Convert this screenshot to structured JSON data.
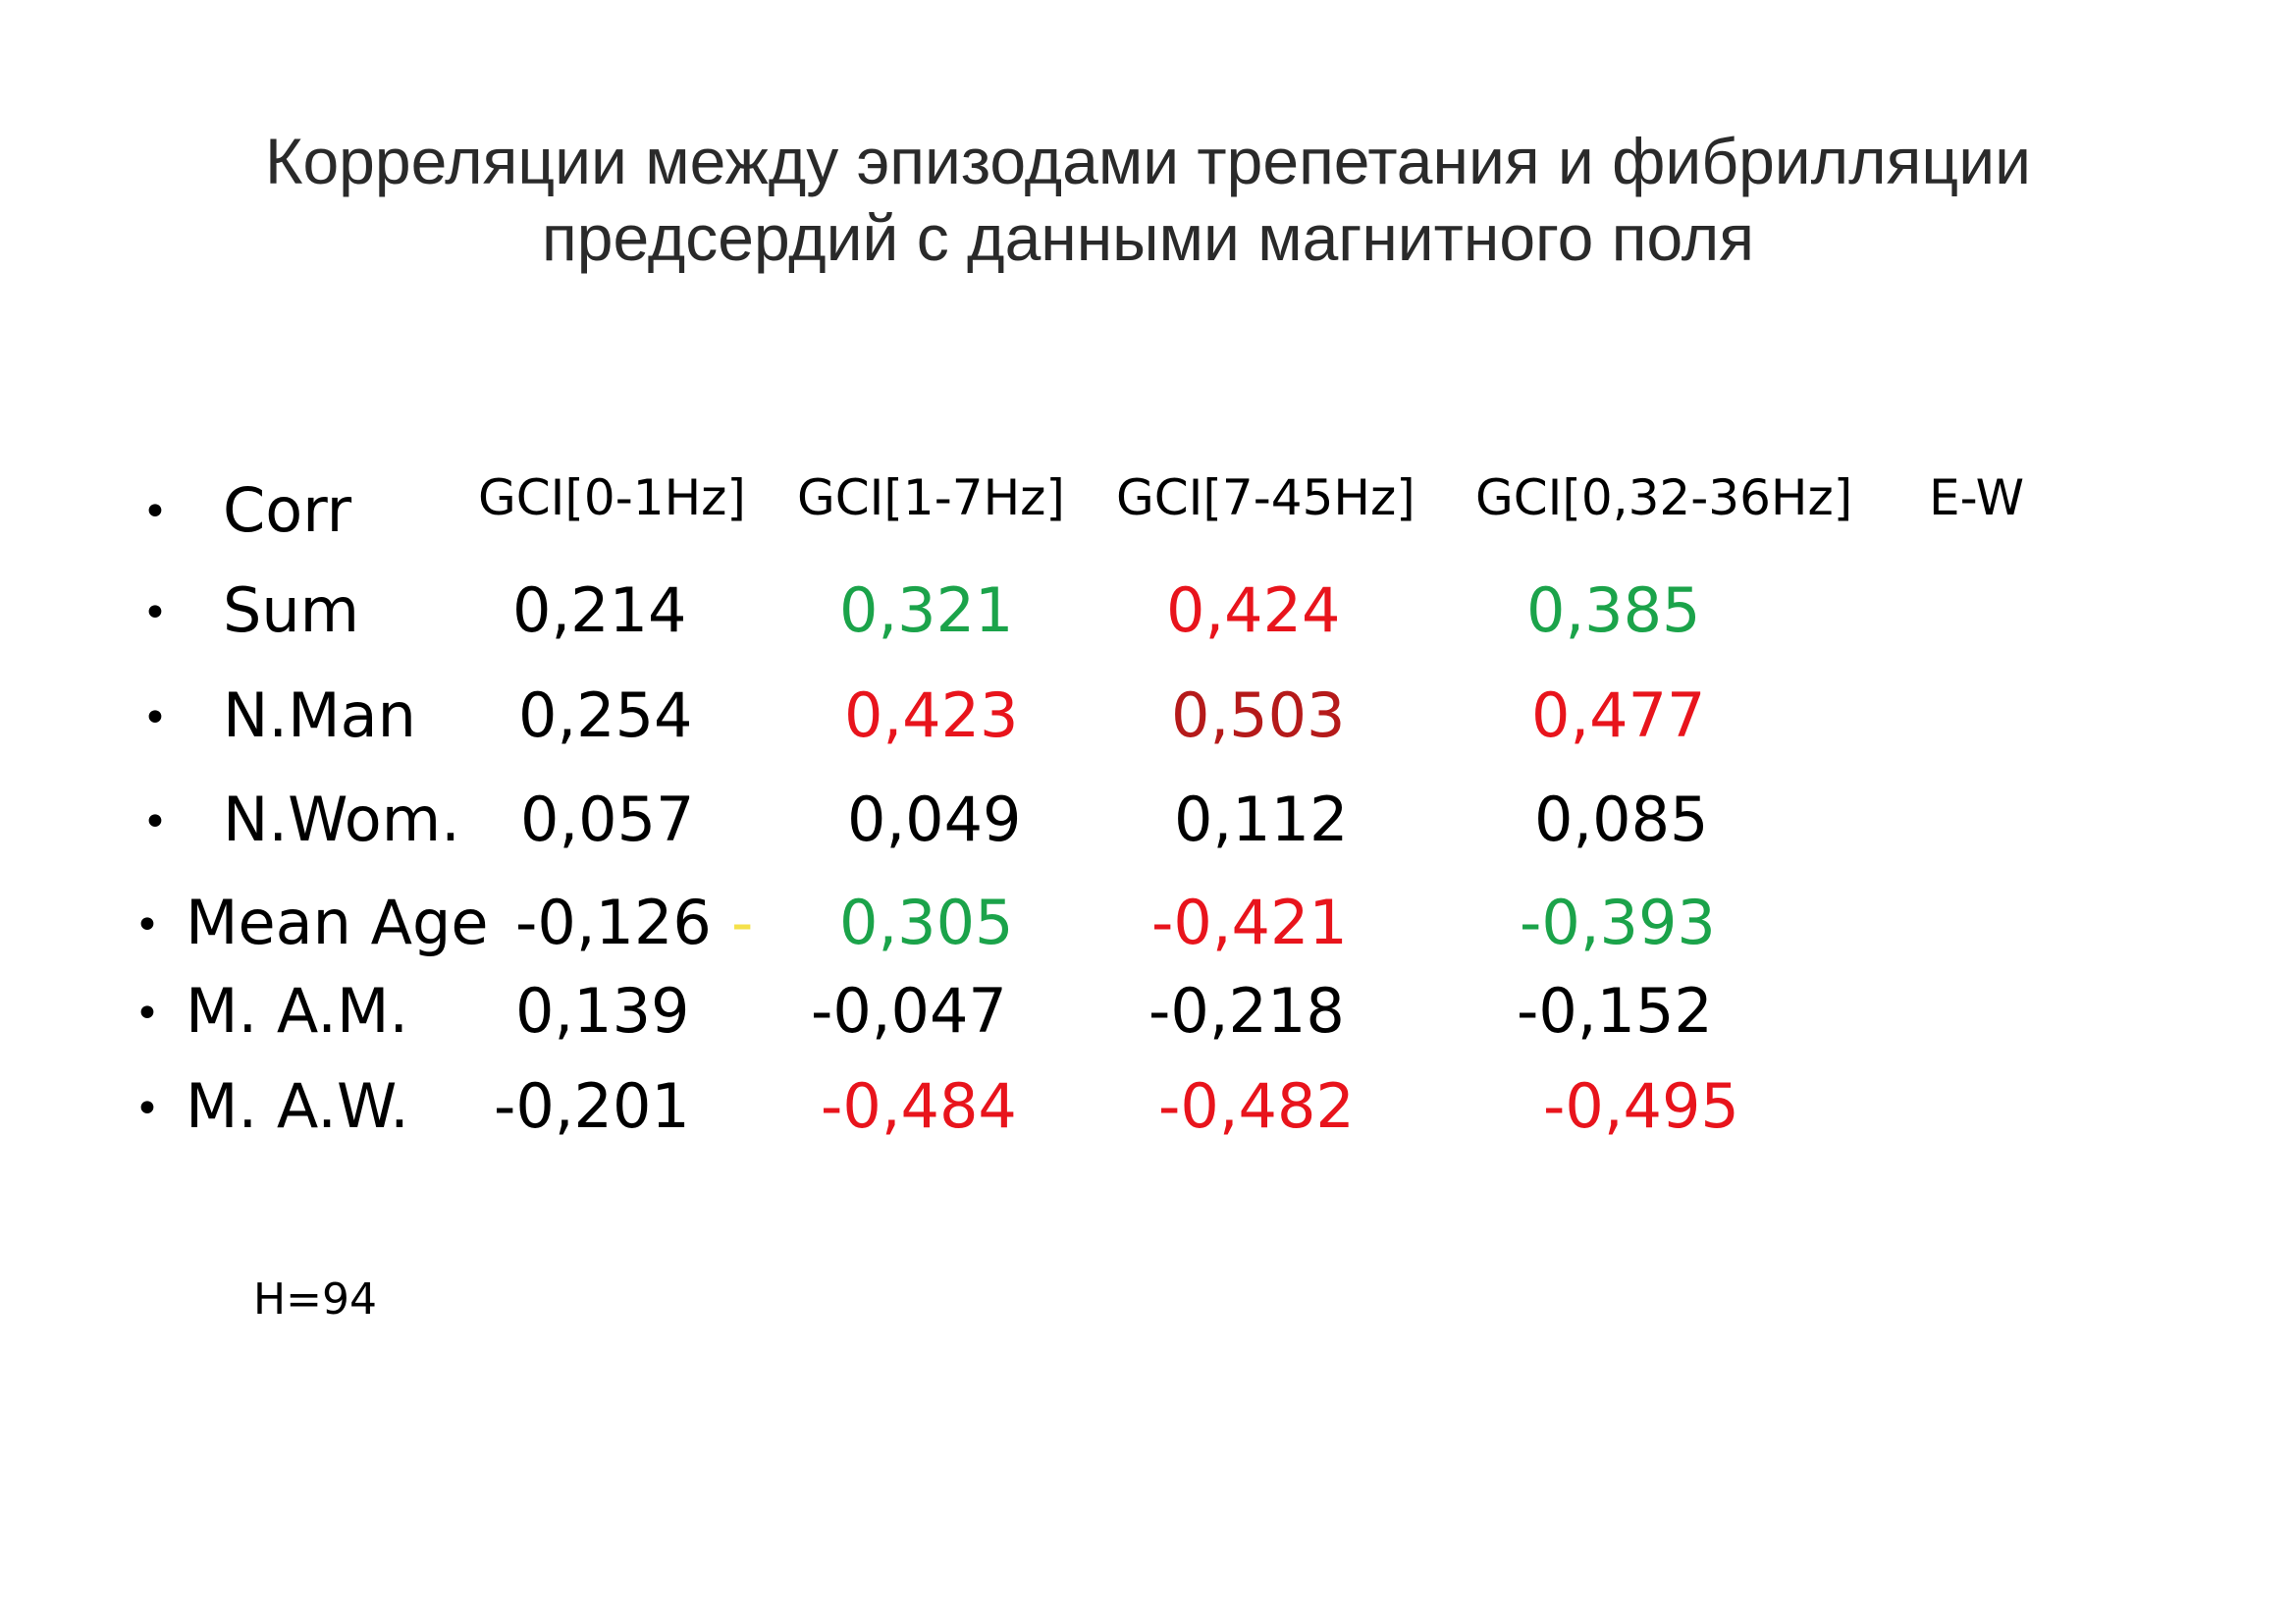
{
  "title": {
    "line1": "Корреляции между эпизодами трепетания и фибрилляции",
    "line2": "предсердий с данными магнитного поля"
  },
  "header": {
    "label": "Corr",
    "columns": [
      "GCI[0-1Hz]",
      "GCI[1-7Hz]",
      "GCI[7-45Hz]",
      "GCI[0,32-36Hz]",
      "E-W"
    ]
  },
  "rows": [
    {
      "label": "Sum",
      "values": [
        "0,214",
        "0,321",
        "0,424",
        "0,385"
      ]
    },
    {
      "label": "N.Man",
      "values": [
        "0,254",
        "0,423",
        "0,503",
        "0,477"
      ]
    },
    {
      "label": "N.Wom.",
      "values": [
        "0,057",
        "0,049",
        "0,112",
        "0,085"
      ]
    },
    {
      "label": "Mean Age",
      "values": [
        "-0,126",
        "0,305",
        "-0,421",
        "-0,393"
      ],
      "extra_mark": "-"
    },
    {
      "label": "M. A.M.",
      "values": [
        "0,139",
        "-0,047",
        "-0,218",
        "-0,152"
      ]
    },
    {
      "label": "M. A.W.",
      "values": [
        "-0,201",
        "-0,484",
        "-0,482",
        "-0,495"
      ]
    }
  ],
  "note": "Н=94",
  "colors": {
    "black": "#000000",
    "green": "#1ba34a",
    "red": "#e8141c",
    "dark_red": "#b51a1a",
    "yellow": "#f5e14a"
  }
}
